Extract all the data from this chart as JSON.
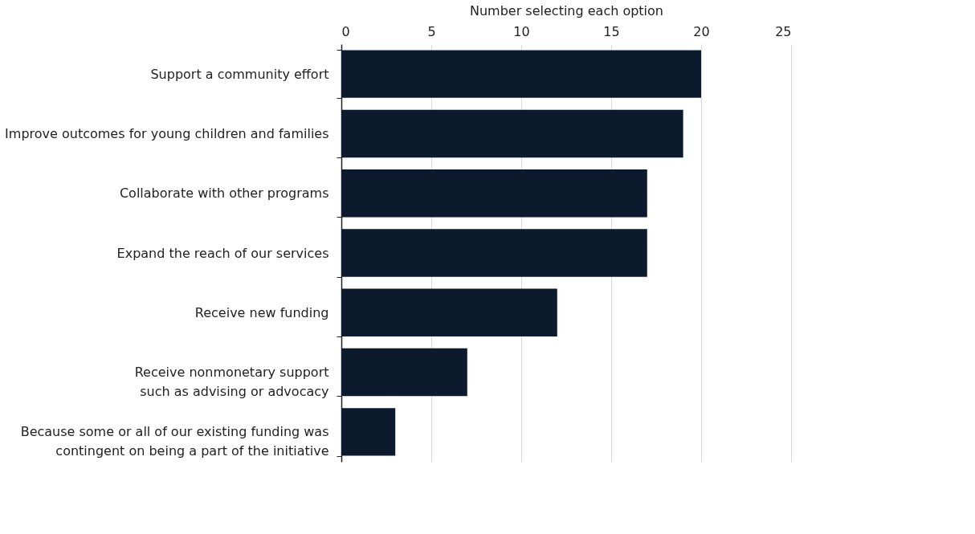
{
  "chart_data": {
    "type": "bar",
    "orientation": "horizontal",
    "xlabel": "Number selecting each option",
    "categories": [
      "Support a community effort",
      "Improve outcomes for young children and families",
      "Collaborate with other programs",
      "Expand the reach of our services",
      "Receive new funding",
      "Receive nonmonetary support\nsuch as advising or advocacy",
      "Because some or all of our existing funding was\ncontingent on being a part of the initiative"
    ],
    "values": [
      20,
      19,
      17,
      17,
      12,
      7,
      3
    ],
    "color": "#0b1a2c",
    "xlim": [
      0,
      25
    ],
    "xticks": [
      0,
      5,
      10,
      15,
      20,
      25
    ],
    "grid": "x"
  }
}
